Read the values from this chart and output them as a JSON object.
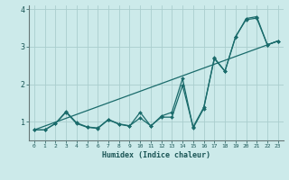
{
  "xlabel": "Humidex (Indice chaleur)",
  "bg_color": "#cceaea",
  "grid_color": "#aacece",
  "line_color": "#1a6b6b",
  "x_ticks": [
    0,
    1,
    2,
    3,
    4,
    5,
    6,
    7,
    8,
    9,
    10,
    11,
    12,
    13,
    14,
    15,
    16,
    17,
    18,
    19,
    20,
    21,
    22,
    23
  ],
  "ylim": [
    0.5,
    4.1
  ],
  "xlim": [
    -0.5,
    23.5
  ],
  "line1_x": [
    0,
    1,
    2,
    3,
    4,
    5,
    6,
    7,
    8,
    9,
    10,
    11,
    12,
    13,
    14,
    15,
    16,
    17,
    18,
    19,
    20,
    21,
    22,
    23
  ],
  "line1_y": [
    0.78,
    0.78,
    0.95,
    1.25,
    0.95,
    0.85,
    0.82,
    1.05,
    0.93,
    0.88,
    1.25,
    0.88,
    1.15,
    1.25,
    2.15,
    0.83,
    1.35,
    2.7,
    2.35,
    3.25,
    3.75,
    3.8,
    3.05,
    3.15
  ],
  "line2_x": [
    0,
    1,
    2,
    3,
    4,
    5,
    6,
    7,
    8,
    9,
    10,
    11,
    12,
    13,
    14,
    15,
    16,
    17,
    18,
    19,
    20,
    21,
    22,
    23
  ],
  "line2_y": [
    0.78,
    0.78,
    0.95,
    1.27,
    0.97,
    0.86,
    0.83,
    1.06,
    0.94,
    0.89,
    1.1,
    0.89,
    1.12,
    1.12,
    1.97,
    0.86,
    1.38,
    2.68,
    2.34,
    3.27,
    3.72,
    3.76,
    3.05,
    3.15
  ],
  "line3_x": [
    0,
    23
  ],
  "line3_y": [
    0.78,
    3.15
  ],
  "yticks": [
    1,
    2,
    3,
    4
  ]
}
